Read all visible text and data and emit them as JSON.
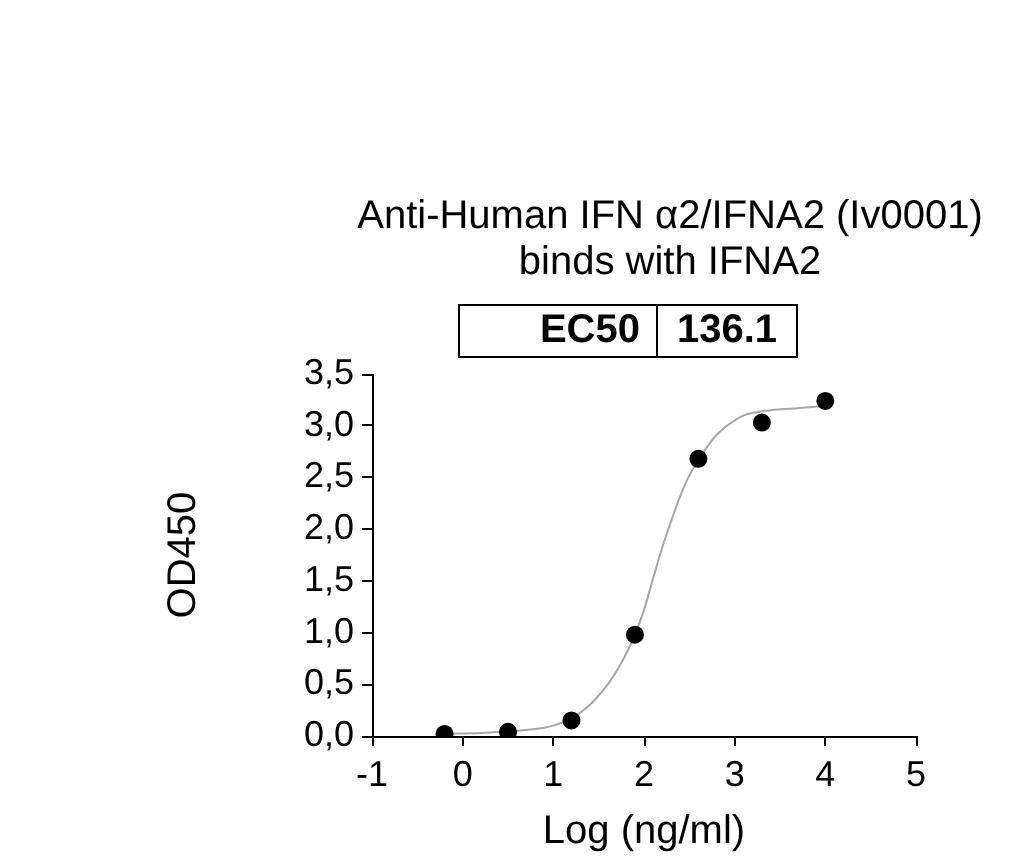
{
  "chart_data": {
    "type": "scatter",
    "title": "Anti-Human IFN α2/IFNA2 (Iv0001) binds with IFNA2",
    "xlabel": "Log (ng/ml)",
    "ylabel": "OD450",
    "annotations": [
      "EC50",
      "136.1"
    ],
    "series": [
      {
        "color": "#000000",
        "x": [
          -0.2,
          0.5,
          1.2,
          1.9,
          2.6,
          3.3,
          4.0
        ],
        "values": [
          0.02,
          0.04,
          0.15,
          0.98,
          2.68,
          3.03,
          3.24
        ]
      },
      {
        "type": "line",
        "color": "#a6a6a6",
        "marker": "none",
        "x": [
          -0.2,
          0.2,
          0.6,
          0.9,
          1.0,
          1.2,
          1.4,
          1.6,
          1.7,
          1.8,
          1.9,
          2.0,
          2.1,
          2.2,
          2.3,
          2.4,
          2.5,
          2.6,
          2.7,
          2.8,
          2.9,
          3.0,
          3.1,
          3.4,
          3.7,
          4.0
        ],
        "values": [
          0.02,
          0.03,
          0.05,
          0.08,
          0.1,
          0.17,
          0.3,
          0.5,
          0.63,
          0.79,
          0.98,
          1.22,
          1.52,
          1.82,
          2.08,
          2.32,
          2.52,
          2.67,
          2.8,
          2.91,
          2.99,
          3.05,
          3.1,
          3.15,
          3.17,
          3.19
        ]
      }
    ],
    "xlim": [
      -1,
      5
    ],
    "xticks": [
      -1,
      0,
      1,
      2,
      3,
      4,
      5
    ],
    "ylim": [
      0,
      3.5
    ],
    "yticks": [
      {
        "value": 0,
        "label": "0,0"
      },
      {
        "value": 0.5,
        "label": "0,5"
      },
      {
        "value": 1,
        "label": "1,0"
      },
      {
        "value": 1.5,
        "label": "1,5"
      },
      {
        "value": 2,
        "label": "2,0"
      },
      {
        "value": 2.5,
        "label": "2,5"
      },
      {
        "value": 3,
        "label": "3,0"
      },
      {
        "value": 3.5,
        "label": "3,5"
      }
    ],
    "marker": "circle"
  }
}
